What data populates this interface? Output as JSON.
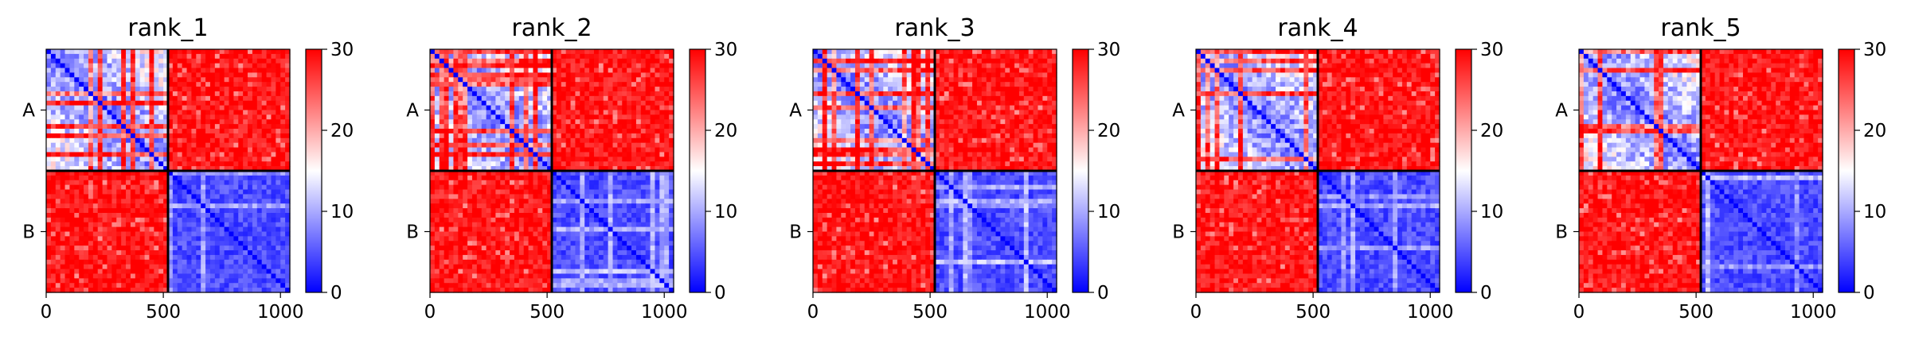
{
  "chart_data": {
    "type": "heatmap",
    "colormap": {
      "name": "bwr",
      "low_color": "#0000ff",
      "mid_color": "#ffffff",
      "high_color": "#ff0000"
    },
    "vmin": 0,
    "vmax": 30,
    "colorbar_ticks": [
      "0",
      "10",
      "20",
      "30"
    ],
    "x_range": [
      0,
      1040
    ],
    "x_ticks": [
      {
        "value": 0,
        "label": "0"
      },
      {
        "value": 500,
        "label": "500"
      },
      {
        "value": 1000,
        "label": "1000"
      }
    ],
    "chain_boundary": 520,
    "chains": [
      {
        "label": "A",
        "start": 0,
        "end": 520
      },
      {
        "label": "B",
        "start": 520,
        "end": 1040
      }
    ],
    "block_means": {
      "A-A": 10,
      "A-B": 30,
      "B-A": 30,
      "B-B": 5
    },
    "panels": [
      {
        "title": "rank_1"
      },
      {
        "title": "rank_2"
      },
      {
        "title": "rank_3"
      },
      {
        "title": "rank_4"
      },
      {
        "title": "rank_5"
      }
    ]
  }
}
